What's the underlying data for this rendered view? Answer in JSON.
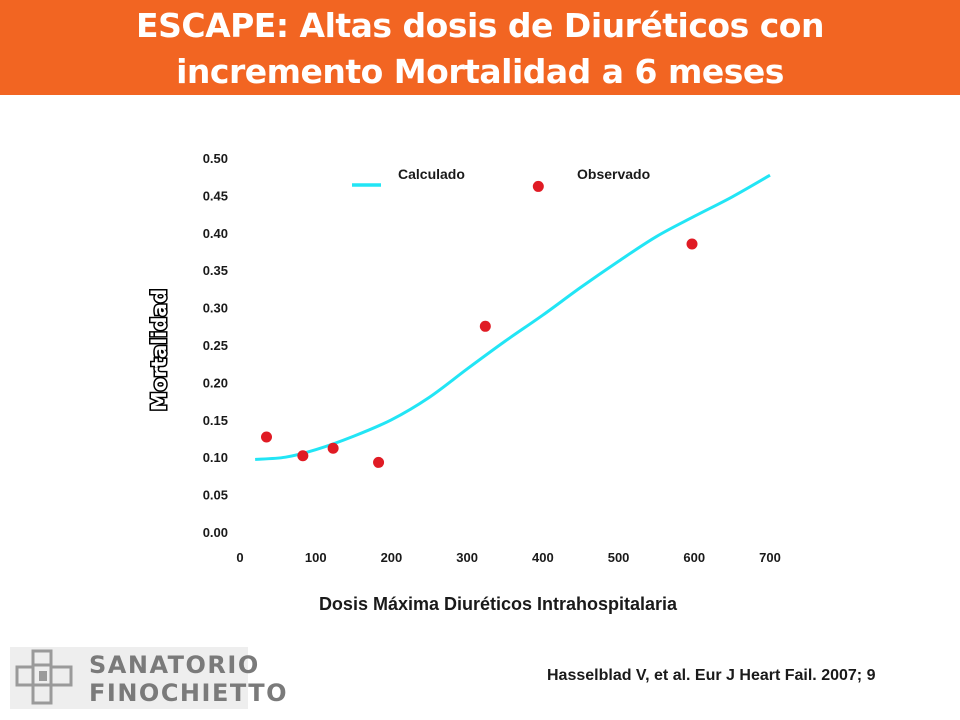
{
  "header": {
    "title_line1": "ESCAPE: Altas dosis de Diuréticos con",
    "title_line2": "incremento Mortalidad a 6 meses",
    "banner_color": "#F26522"
  },
  "chart_data": {
    "type": "scatter",
    "title": "",
    "xlabel": "Dosis Máxima Diuréticos Intrahospitalaria",
    "ylabel": "Mortalidad",
    "xlim": [
      0,
      700
    ],
    "ylim": [
      0,
      0.5
    ],
    "xticks": [
      "0",
      "100",
      "200",
      "300",
      "400",
      "500",
      "600",
      "700"
    ],
    "yticks": [
      "0.00",
      "0.05",
      "0.10",
      "0.15",
      "0.20",
      "0.25",
      "0.30",
      "0.35",
      "0.40",
      "0.45",
      "0.50"
    ],
    "grid": false,
    "legend": {
      "placement": "top",
      "entries": [
        "Calculado",
        "Observado"
      ]
    },
    "series": [
      {
        "name": "Calculado",
        "kind": "line",
        "color": "#22E5F5",
        "x": [
          20,
          60,
          100,
          150,
          200,
          250,
          300,
          350,
          400,
          450,
          500,
          550,
          600,
          650,
          700
        ],
        "y": [
          0.097,
          0.1,
          0.11,
          0.128,
          0.15,
          0.18,
          0.218,
          0.255,
          0.29,
          0.327,
          0.362,
          0.395,
          0.422,
          0.448,
          0.477
        ]
      },
      {
        "name": "Observado",
        "kind": "scatter",
        "color": "#E01B24",
        "x": [
          35,
          83,
          123,
          183,
          324,
          394,
          597
        ],
        "y": [
          0.127,
          0.102,
          0.112,
          0.093,
          0.275,
          0.462,
          0.385
        ]
      }
    ]
  },
  "citation": "Hasselblad  V, et al.  Eur J Heart Fail.  2007; 9",
  "logo": {
    "line1": "SANATORIO",
    "line2": "FINOCHIETTO"
  }
}
